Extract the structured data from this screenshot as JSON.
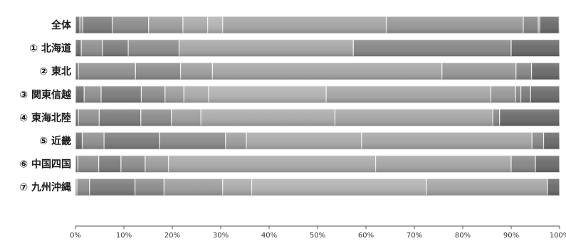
{
  "chart_data": {
    "type": "bar",
    "orientation": "horizontal",
    "stacked": true,
    "categories": [
      "全体",
      "① 北海道",
      "② 東北",
      "③ 関東信越",
      "④ 東海北陸",
      "⑤ 近畿",
      "⑥ 中国四国",
      "⑦ 九州沖縄"
    ],
    "segment_percents": [
      [
        0.9,
        0.6,
        6.1,
        7.5,
        7.1,
        5.1,
        3.1,
        33.8,
        28.3,
        3.1,
        0.3,
        4.0
      ],
      [
        1.2,
        4.4,
        5.3,
        10.5,
        0,
        0,
        0,
        36.0,
        0,
        32.6,
        0,
        10.0
      ],
      [
        0.6,
        11.8,
        0,
        9.3,
        6.6,
        0,
        0,
        47.4,
        15.3,
        3.2,
        0,
        5.8
      ],
      [
        1.8,
        3.5,
        8.3,
        4.9,
        3.9,
        5.1,
        24.3,
        34.0,
        5.1,
        1.1,
        2.0,
        6.0
      ],
      [
        0.6,
        4.3,
        8.6,
        6.3,
        6.1,
        27.7,
        0,
        32.6,
        0,
        1.4,
        0,
        12.4
      ],
      [
        1.4,
        4.5,
        11.5,
        13.6,
        4.3,
        23.8,
        0,
        35.2,
        0,
        2.4,
        0,
        3.3
      ],
      [
        0.5,
        4.3,
        4.6,
        5.0,
        4.8,
        42.8,
        0,
        28.0,
        0,
        5.0,
        0,
        5.0
      ],
      [
        0.3,
        2.6,
        9.4,
        6.0,
        12.1,
        6.0,
        36.1,
        25.0,
        0,
        0,
        0,
        2.5
      ]
    ],
    "segment_shades": [
      "#6e6e6e",
      "#8d8d8d",
      "#7a7a7a",
      "#8a8a8a",
      "#9c9c9c",
      "#a9a9a9",
      "#b1b1b1",
      "#a4a4a4",
      "#969696",
      "#858585",
      "#787878",
      "#686868"
    ],
    "xlim": [
      0,
      100
    ],
    "x_ticks": [
      "0%",
      "10%",
      "20%",
      "30%",
      "40%",
      "50%",
      "60%",
      "70%",
      "80%",
      "90%",
      "100%"
    ],
    "grid": false,
    "legend": "none",
    "title": "",
    "xlabel": "",
    "ylabel": ""
  }
}
